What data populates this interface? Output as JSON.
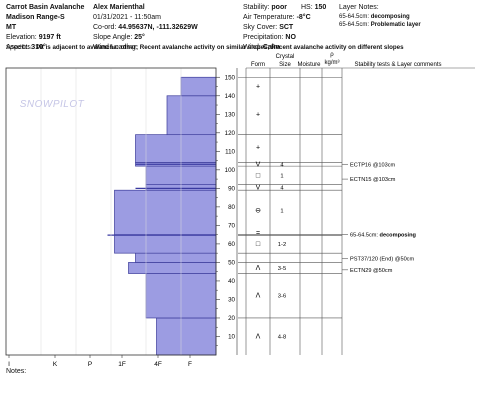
{
  "header": {
    "col1": [
      {
        "label": "",
        "value": "Carrot Basin Avalanche"
      },
      {
        "label": "",
        "value": "Madison Range-S"
      },
      {
        "label": "",
        "value": "MT"
      },
      {
        "label": "Elevation: ",
        "value": "9197 ft"
      },
      {
        "label": "Aspect: ",
        "value": "310°"
      }
    ],
    "col2": [
      {
        "label": "",
        "value": "Alex Marienthal"
      },
      {
        "label": "",
        "value": "01/31/2021 - 11:50am"
      },
      {
        "label": "Co-ord: ",
        "value": "44.95637N, -111.32629W"
      },
      {
        "label": "Slope Angle: ",
        "value": "25°"
      },
      {
        "label": "Wind Loading: ",
        "value": ""
      }
    ],
    "col3": [
      {
        "label": "Stability: ",
        "value": "poor"
      },
      {
        "label": "Air Temperature: ",
        "value": "-8°C"
      },
      {
        "label": "Sky Cover: ",
        "value": "SCT"
      },
      {
        "label": "Precipitation: ",
        "value": "NO"
      },
      {
        "label": "Wind: ",
        "value": "Calm"
      }
    ],
    "hs_label": "HS: ",
    "hs_value": "150",
    "layer_notes_label": "Layer Notes:",
    "layer_notes": [
      {
        "depth": "65-64.5cm: ",
        "note": "decomposing"
      },
      {
        "depth": "65-64.5cm: ",
        "note": "Problematic layer"
      }
    ],
    "specifics_label": "Specifics:",
    "specifics_text": "Pit is adjacent to avalanche: other; Recent avalanche activity on similar slopes; Recent avalanche activity on different slopes"
  },
  "columns": {
    "form": "Form",
    "crystal": "Crystal",
    "size": "Size",
    "moisture": "Moisture",
    "rho": "ρ",
    "rho_unit": "kg/m³",
    "tests": "Stability tests & Layer comments"
  },
  "notes_label": "Notes:",
  "chart_data": {
    "type": "bar",
    "orientation": "horizontal",
    "description_of_axes": {
      "y_ticks": [
        10,
        20,
        30,
        40,
        50,
        60,
        70,
        80,
        90,
        100,
        110,
        120,
        130,
        140,
        150
      ],
      "ylim": [
        0,
        155
      ],
      "x_ticks": [
        "I",
        "K",
        "P",
        "1F",
        "4F",
        "F"
      ]
    },
    "hardness_scale": [
      "I",
      "K",
      "P",
      "1F",
      "4F",
      "F"
    ],
    "layers": [
      {
        "bottom": 0,
        "top": 20,
        "hardness_pos": 4.3
      },
      {
        "bottom": 20,
        "top": 44,
        "hardness_pos": 4.0
      },
      {
        "bottom": 44,
        "top": 50,
        "hardness_pos": 3.5
      },
      {
        "bottom": 50,
        "top": 55,
        "hardness_pos": 3.7
      },
      {
        "bottom": 55,
        "top": 65,
        "hardness_pos": 3.1
      },
      {
        "bottom": 65,
        "top": 89,
        "hardness_pos": 3.1
      },
      {
        "bottom": 89,
        "top": 92,
        "hardness_pos": 4.0
      },
      {
        "bottom": 92,
        "top": 102,
        "hardness_pos": 4.0
      },
      {
        "bottom": 102,
        "top": 104,
        "hardness_pos": 3.7
      },
      {
        "bottom": 104,
        "top": 119,
        "hardness_pos": 3.7
      },
      {
        "bottom": 119,
        "top": 140,
        "hardness_pos": 4.6
      },
      {
        "bottom": 140,
        "top": 150,
        "hardness_pos": 5.0
      }
    ],
    "lines": [
      {
        "height": 103,
        "hardness_pos": 3.7
      },
      {
        "height": 90,
        "hardness_pos": 3.7
      },
      {
        "height": 64.75,
        "hardness_pos": 2.9
      }
    ],
    "form_rows": [
      {
        "mid": 10,
        "form": "Λ",
        "size": "4-8"
      },
      {
        "mid": 32,
        "form": "Λ",
        "size": "3-6"
      },
      {
        "mid": 47,
        "form": "Λ",
        "size": "3-5"
      },
      {
        "mid": 60,
        "form": "□",
        "size": "1-2"
      },
      {
        "mid": 66,
        "form": "=",
        "size": ""
      },
      {
        "mid": 78,
        "form": "⊖",
        "size": "1"
      },
      {
        "mid": 90.5,
        "form": "V",
        "size": "4"
      },
      {
        "mid": 97,
        "form": "□",
        "size": "1"
      },
      {
        "mid": 103,
        "form": "V",
        "size": "4"
      },
      {
        "mid": 112,
        "form": "+",
        "size": ""
      },
      {
        "mid": 130,
        "form": "+",
        "size": ""
      },
      {
        "mid": 145,
        "form": "+",
        "size": ""
      }
    ],
    "boundaries": [
      20,
      44,
      50,
      55,
      64.5,
      65,
      89,
      92,
      102,
      104,
      119,
      150
    ],
    "tests": [
      {
        "height": 103,
        "text": "ECTP16 @103cm"
      },
      {
        "height": 95,
        "text": "ECTN15 @103cm"
      },
      {
        "height": 65,
        "text": "65-64.5cm: ",
        "bold": "decomposing"
      },
      {
        "height": 52,
        "text": "PST37/120 (End) @50cm"
      },
      {
        "height": 46,
        "text": "ECTN29 @50cm"
      }
    ]
  }
}
